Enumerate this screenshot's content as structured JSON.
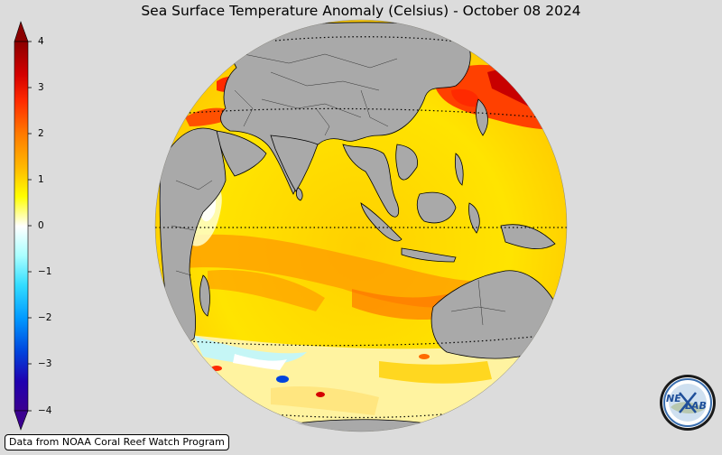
{
  "title": "Sea Surface Temperature Anomaly (Celsius) - October 08 2024",
  "colorbar": {
    "ticks": [
      "4",
      "3",
      "2",
      "1",
      "0",
      "−1",
      "−2",
      "−3",
      "−4"
    ],
    "min": -4,
    "max": 4
  },
  "credit": "Data from NOAA Coral Reef Watch Program",
  "logo": {
    "text_a": "NE",
    "text_b": "LAB"
  },
  "colors": {
    "land": "#a9a9a9",
    "background": "#dcdcdc",
    "anomaly_high": "#8b0000",
    "anomaly_zero": "#ffffff",
    "anomaly_low": "#3b0090"
  }
}
